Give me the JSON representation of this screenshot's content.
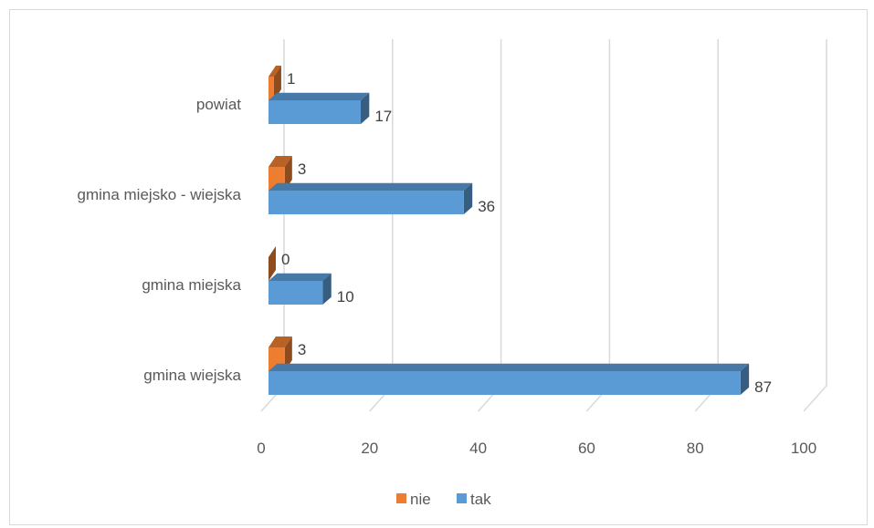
{
  "chart_data": {
    "type": "bar",
    "orientation": "horizontal",
    "style": "3d",
    "categories": [
      "powiat",
      "gmina miejsko - wiejska",
      "gmina miejska",
      "gmina wiejska"
    ],
    "series": [
      {
        "name": "nie",
        "color": "#ed7d31",
        "values": [
          1,
          3,
          0,
          3
        ]
      },
      {
        "name": "tak",
        "color": "#5b9bd5",
        "values": [
          17,
          36,
          10,
          87
        ]
      }
    ],
    "xlim": [
      0,
      100
    ],
    "xticks": [
      0,
      20,
      40,
      60,
      80,
      100
    ],
    "grid": true,
    "legend_position": "bottom"
  }
}
